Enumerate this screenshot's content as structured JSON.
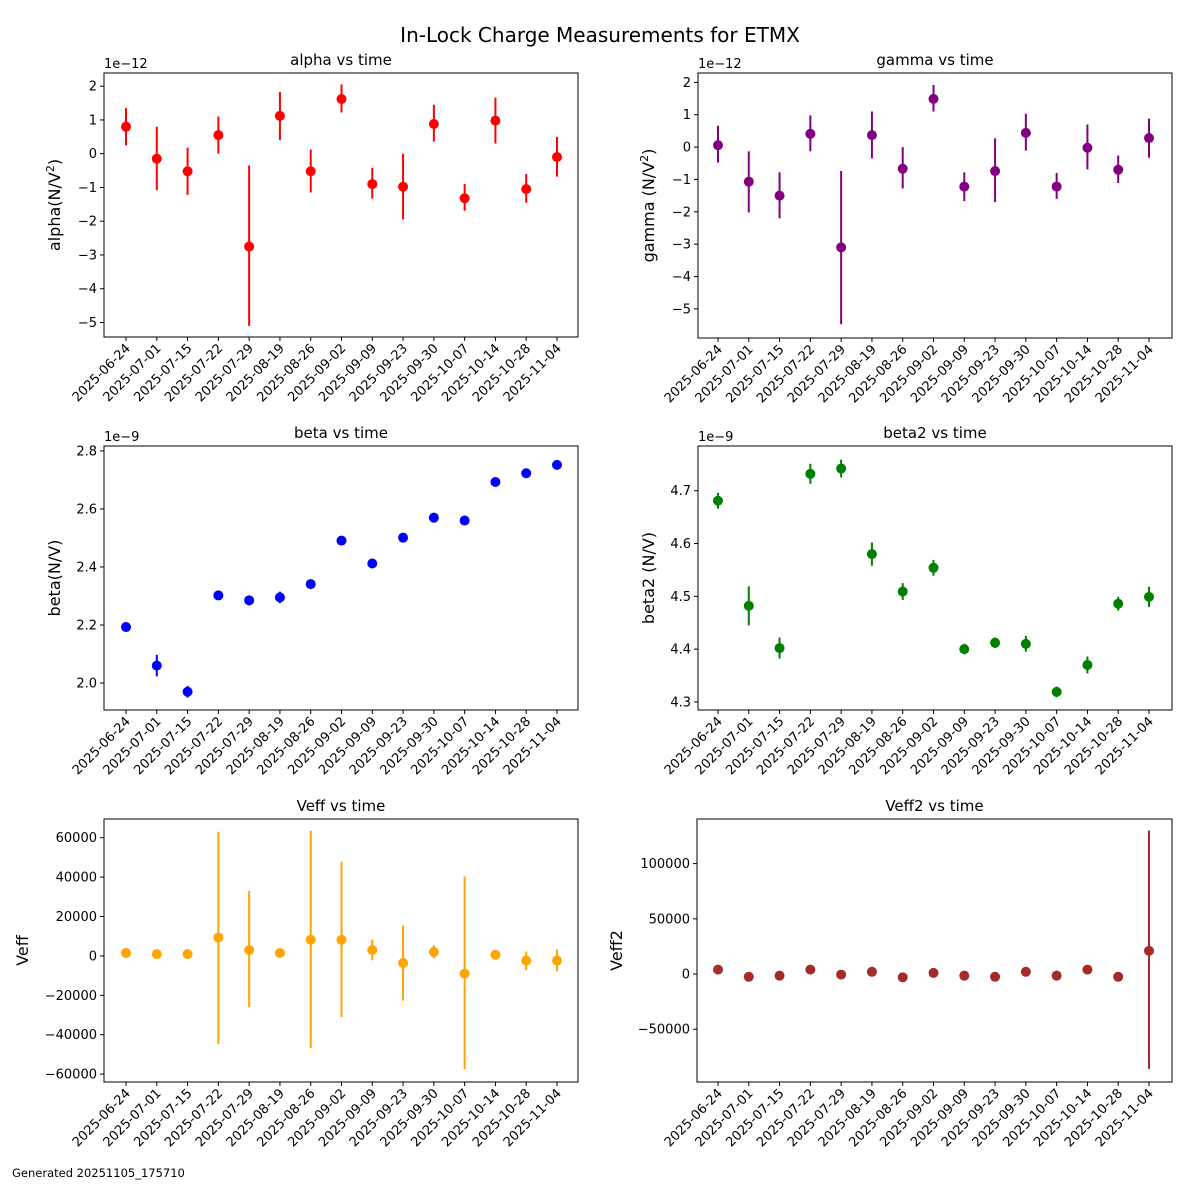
{
  "figure": {
    "title": "In-Lock Charge Measurements for ETMX",
    "footer": "Generated 20251105_175710"
  },
  "chart_data": [
    {
      "type": "scatter",
      "id": "alpha",
      "title": "alpha vs time",
      "ylabel": "alpha(N/V²)",
      "ylabel_parts": [
        "alpha(N/V",
        "2",
        ")"
      ],
      "offset_text": "1e−12",
      "color": "#ff0000",
      "categories": [
        "2025-06-24",
        "2025-07-01",
        "2025-07-15",
        "2025-07-22",
        "2025-07-29",
        "2025-08-19",
        "2025-08-26",
        "2025-09-02",
        "2025-09-09",
        "2025-09-23",
        "2025-09-30",
        "2025-10-07",
        "2025-10-14",
        "2025-10-28",
        "2025-11-04"
      ],
      "values": [
        0.8,
        -0.15,
        -0.52,
        0.55,
        -2.75,
        1.12,
        -0.52,
        1.62,
        -0.9,
        -0.98,
        0.88,
        -1.32,
        0.98,
        -1.05,
        -0.1
      ],
      "err_low": [
        0.25,
        -1.08,
        -1.22,
        0.0,
        -5.1,
        0.4,
        -1.15,
        1.22,
        -1.33,
        -1.95,
        0.36,
        -1.69,
        0.3,
        -1.45,
        -0.68
      ],
      "err_high": [
        1.35,
        0.8,
        0.18,
        1.1,
        -0.35,
        1.83,
        0.12,
        2.05,
        -0.42,
        0.0,
        1.45,
        -0.9,
        1.66,
        -0.6,
        0.5
      ],
      "yticks": [
        2,
        1,
        0,
        -1,
        -2,
        -3,
        -4,
        -5
      ],
      "ytick_labels": [
        "2",
        "1",
        "0",
        "−1",
        "−2",
        "−3",
        "−4",
        "−5"
      ],
      "ylim": [
        -5.43,
        2.39
      ],
      "scale": "1e-12",
      "grid": false
    },
    {
      "type": "scatter",
      "id": "gamma",
      "title": "gamma vs time",
      "ylabel": "gamma (N/V²)",
      "ylabel_parts": [
        "gamma (N/V",
        "2",
        ")"
      ],
      "offset_text": "1e−12",
      "color": "#800080",
      "categories": [
        "2025-06-24",
        "2025-07-01",
        "2025-07-15",
        "2025-07-22",
        "2025-07-29",
        "2025-08-19",
        "2025-08-26",
        "2025-09-02",
        "2025-09-09",
        "2025-09-23",
        "2025-09-30",
        "2025-10-07",
        "2025-10-14",
        "2025-10-28",
        "2025-11-04"
      ],
      "values": [
        0.06,
        -1.07,
        -1.5,
        0.41,
        -3.1,
        0.37,
        -0.67,
        1.49,
        -1.22,
        -0.74,
        0.44,
        -1.22,
        -0.02,
        -0.7,
        0.28
      ],
      "err_low": [
        -0.48,
        -2.02,
        -2.2,
        -0.13,
        -5.47,
        -0.35,
        -1.28,
        1.1,
        -1.67,
        -1.7,
        -0.11,
        -1.6,
        -0.69,
        -1.11,
        -0.33
      ],
      "err_high": [
        0.66,
        -0.13,
        -0.78,
        0.98,
        -0.74,
        1.1,
        0.0,
        1.92,
        -0.78,
        0.27,
        1.03,
        -0.8,
        0.7,
        -0.26,
        0.88
      ],
      "yticks": [
        2,
        1,
        0,
        -1,
        -2,
        -3,
        -4,
        -5
      ],
      "ytick_labels": [
        "2",
        "1",
        "0",
        "−1",
        "−2",
        "−3",
        "−4",
        "−5"
      ],
      "ylim": [
        -5.9,
        2.29
      ],
      "scale": "1e-12",
      "grid": false
    },
    {
      "type": "scatter",
      "id": "beta",
      "title": "beta vs time",
      "ylabel": "beta(N/V)",
      "ylabel_parts": [
        "beta(N/V)",
        "",
        ""
      ],
      "offset_text": "1e−9",
      "color": "#0000ff",
      "categories": [
        "2025-06-24",
        "2025-07-01",
        "2025-07-15",
        "2025-07-22",
        "2025-07-29",
        "2025-08-19",
        "2025-08-26",
        "2025-09-02",
        "2025-09-09",
        "2025-09-23",
        "2025-09-30",
        "2025-10-07",
        "2025-10-14",
        "2025-10-28",
        "2025-11-04"
      ],
      "values": [
        2.193,
        2.06,
        1.97,
        2.302,
        2.285,
        2.295,
        2.341,
        2.491,
        2.412,
        2.501,
        2.57,
        2.56,
        2.693,
        2.723,
        2.752
      ],
      "err_low": [
        2.188,
        2.023,
        1.95,
        2.289,
        2.268,
        2.275,
        2.328,
        2.486,
        2.407,
        2.496,
        2.565,
        2.555,
        2.683,
        2.713,
        2.739
      ],
      "err_high": [
        2.198,
        2.097,
        1.99,
        2.315,
        2.302,
        2.315,
        2.354,
        2.496,
        2.417,
        2.506,
        2.575,
        2.565,
        2.703,
        2.733,
        2.765
      ],
      "yticks": [
        2.8,
        2.6,
        2.4,
        2.2,
        2.0
      ],
      "ytick_labels": [
        "2.8",
        "2.6",
        "2.4",
        "2.2",
        "2.0"
      ],
      "ylim": [
        1.907,
        2.817
      ],
      "scale": "1e-9",
      "grid": false
    },
    {
      "type": "scatter",
      "id": "beta2",
      "title": "beta2 vs time",
      "ylabel": "beta2 (N/V)",
      "ylabel_parts": [
        "beta2 (N/V)",
        "",
        ""
      ],
      "offset_text": "1e−9",
      "color": "#008000",
      "categories": [
        "2025-06-24",
        "2025-07-01",
        "2025-07-15",
        "2025-07-22",
        "2025-07-29",
        "2025-08-19",
        "2025-08-26",
        "2025-09-02",
        "2025-09-09",
        "2025-09-23",
        "2025-09-30",
        "2025-10-07",
        "2025-10-14",
        "2025-10-28",
        "2025-11-04"
      ],
      "values": [
        4.681,
        4.482,
        4.402,
        4.732,
        4.742,
        4.58,
        4.509,
        4.554,
        4.4,
        4.412,
        4.41,
        4.319,
        4.37,
        4.486,
        4.499
      ],
      "err_low": [
        4.666,
        4.445,
        4.382,
        4.713,
        4.725,
        4.558,
        4.493,
        4.539,
        4.39,
        4.402,
        4.395,
        4.309,
        4.354,
        4.473,
        4.48
      ],
      "err_high": [
        4.696,
        4.519,
        4.422,
        4.751,
        4.759,
        4.602,
        4.525,
        4.569,
        4.41,
        4.422,
        4.425,
        4.329,
        4.386,
        4.499,
        4.518
      ],
      "yticks": [
        4.7,
        4.6,
        4.5,
        4.4,
        4.3
      ],
      "ytick_labels": [
        "4.7",
        "4.6",
        "4.5",
        "4.4",
        "4.3"
      ],
      "ylim": [
        4.2847,
        4.7847
      ],
      "scale": "1e-9",
      "grid": false
    },
    {
      "type": "scatter",
      "id": "veff",
      "title": "Veff vs time",
      "ylabel": "Veff",
      "ylabel_parts": [
        "Veff",
        "",
        ""
      ],
      "offset_text": "",
      "color": "#ffa500",
      "categories": [
        "2025-06-24",
        "2025-07-01",
        "2025-07-15",
        "2025-07-22",
        "2025-07-29",
        "2025-08-19",
        "2025-08-26",
        "2025-09-02",
        "2025-09-09",
        "2025-09-23",
        "2025-09-30",
        "2025-10-07",
        "2025-10-14",
        "2025-10-28",
        "2025-11-04"
      ],
      "values": [
        1500,
        900,
        900,
        9300,
        3000,
        1500,
        8200,
        8200,
        3000,
        -3600,
        2000,
        -9000,
        600,
        -2400,
        -2400
      ],
      "err_low": [
        1000,
        400,
        400,
        -44700,
        -26000,
        1000,
        -46800,
        -31000,
        -2200,
        -22600,
        -1200,
        -57500,
        100,
        -7300,
        -7800
      ],
      "err_high": [
        2000,
        1400,
        1400,
        63000,
        33000,
        2000,
        63600,
        47800,
        8300,
        15400,
        5500,
        40300,
        1100,
        2200,
        3300
      ],
      "yticks": [
        60000,
        40000,
        20000,
        0,
        -20000,
        -40000,
        -60000
      ],
      "ytick_labels": [
        "60000",
        "40000",
        "20000",
        "0",
        "−20000",
        "−40000",
        "−60000"
      ],
      "ylim": [
        -64000,
        69500
      ],
      "grid": false
    },
    {
      "type": "scatter",
      "id": "veff2",
      "title": "Veff2 vs time",
      "ylabel": "Veff2",
      "ylabel_parts": [
        "Veff2",
        "",
        ""
      ],
      "offset_text": "",
      "color": "#a52a2a",
      "categories": [
        "2025-06-24",
        "2025-07-01",
        "2025-07-15",
        "2025-07-22",
        "2025-07-29",
        "2025-08-19",
        "2025-08-26",
        "2025-09-02",
        "2025-09-09",
        "2025-09-23",
        "2025-09-30",
        "2025-10-07",
        "2025-10-14",
        "2025-10-28",
        "2025-11-04"
      ],
      "values": [
        4000,
        -2500,
        -1500,
        4000,
        -500,
        2000,
        -3000,
        1000,
        -1500,
        -2500,
        2000,
        -1500,
        4000,
        -2500,
        21000
      ],
      "err_low": [
        3800,
        -2700,
        -1700,
        3800,
        -700,
        1800,
        -3200,
        800,
        -1700,
        -2700,
        1800,
        -1700,
        3800,
        -2700,
        -86000
      ],
      "err_high": [
        4200,
        -2300,
        -1300,
        4200,
        -300,
        2200,
        -2800,
        1200,
        -1300,
        -2300,
        2200,
        -1300,
        4200,
        -2300,
        130000
      ],
      "yticks": [
        100000,
        50000,
        0,
        -50000
      ],
      "ytick_labels": [
        "100000",
        "50000",
        "0",
        "−50000"
      ],
      "ylim": [
        -97800,
        140400
      ],
      "grid": false
    }
  ]
}
